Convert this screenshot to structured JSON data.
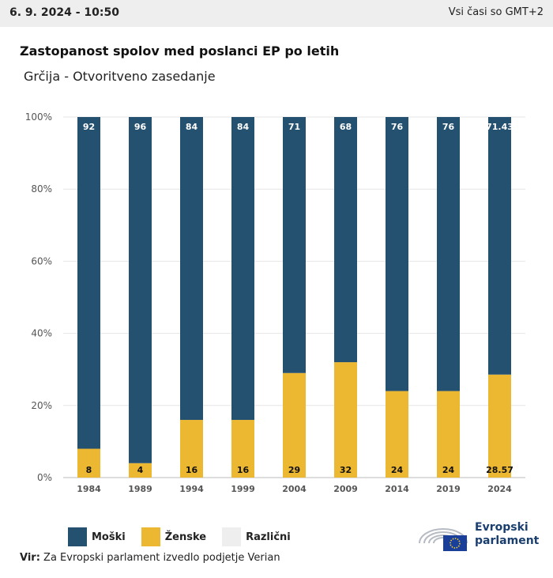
{
  "header": {
    "timestamp": "6. 9. 2024 - 10:50",
    "timezone_note": "Vsi časi so GMT+2"
  },
  "chart_title": "Zastopanost spolov med poslanci EP po letih",
  "chart_subtitle": "Grčija - Otvoritveno zasedanje",
  "chart_data": {
    "type": "bar",
    "stacked": true,
    "categories": [
      "1984",
      "1989",
      "1994",
      "1999",
      "2004",
      "2009",
      "2014",
      "2019",
      "2024"
    ],
    "series": [
      {
        "name": "Ženske",
        "color": "#ecb731",
        "values": [
          8,
          4,
          16,
          16,
          29,
          32,
          24,
          24,
          28.57
        ]
      },
      {
        "name": "Moški",
        "color": "#255170",
        "values": [
          92,
          96,
          84,
          84,
          71,
          68,
          76,
          76,
          71.43
        ]
      }
    ],
    "ylim": [
      0,
      100
    ],
    "yticks": [
      "0%",
      "20%",
      "40%",
      "60%",
      "80%",
      "100%"
    ],
    "grid": true
  },
  "legend": [
    {
      "label": "Moški",
      "color": "#255170"
    },
    {
      "label": "Ženske",
      "color": "#ecb731"
    },
    {
      "label": "Različni",
      "color": "#eeeeef"
    }
  ],
  "source": {
    "prefix": "Vir:",
    "text": "Za Evropski parlament izvedlo podjetje Verian"
  },
  "logo": {
    "line1": "Evropski",
    "line2": "parlament"
  }
}
